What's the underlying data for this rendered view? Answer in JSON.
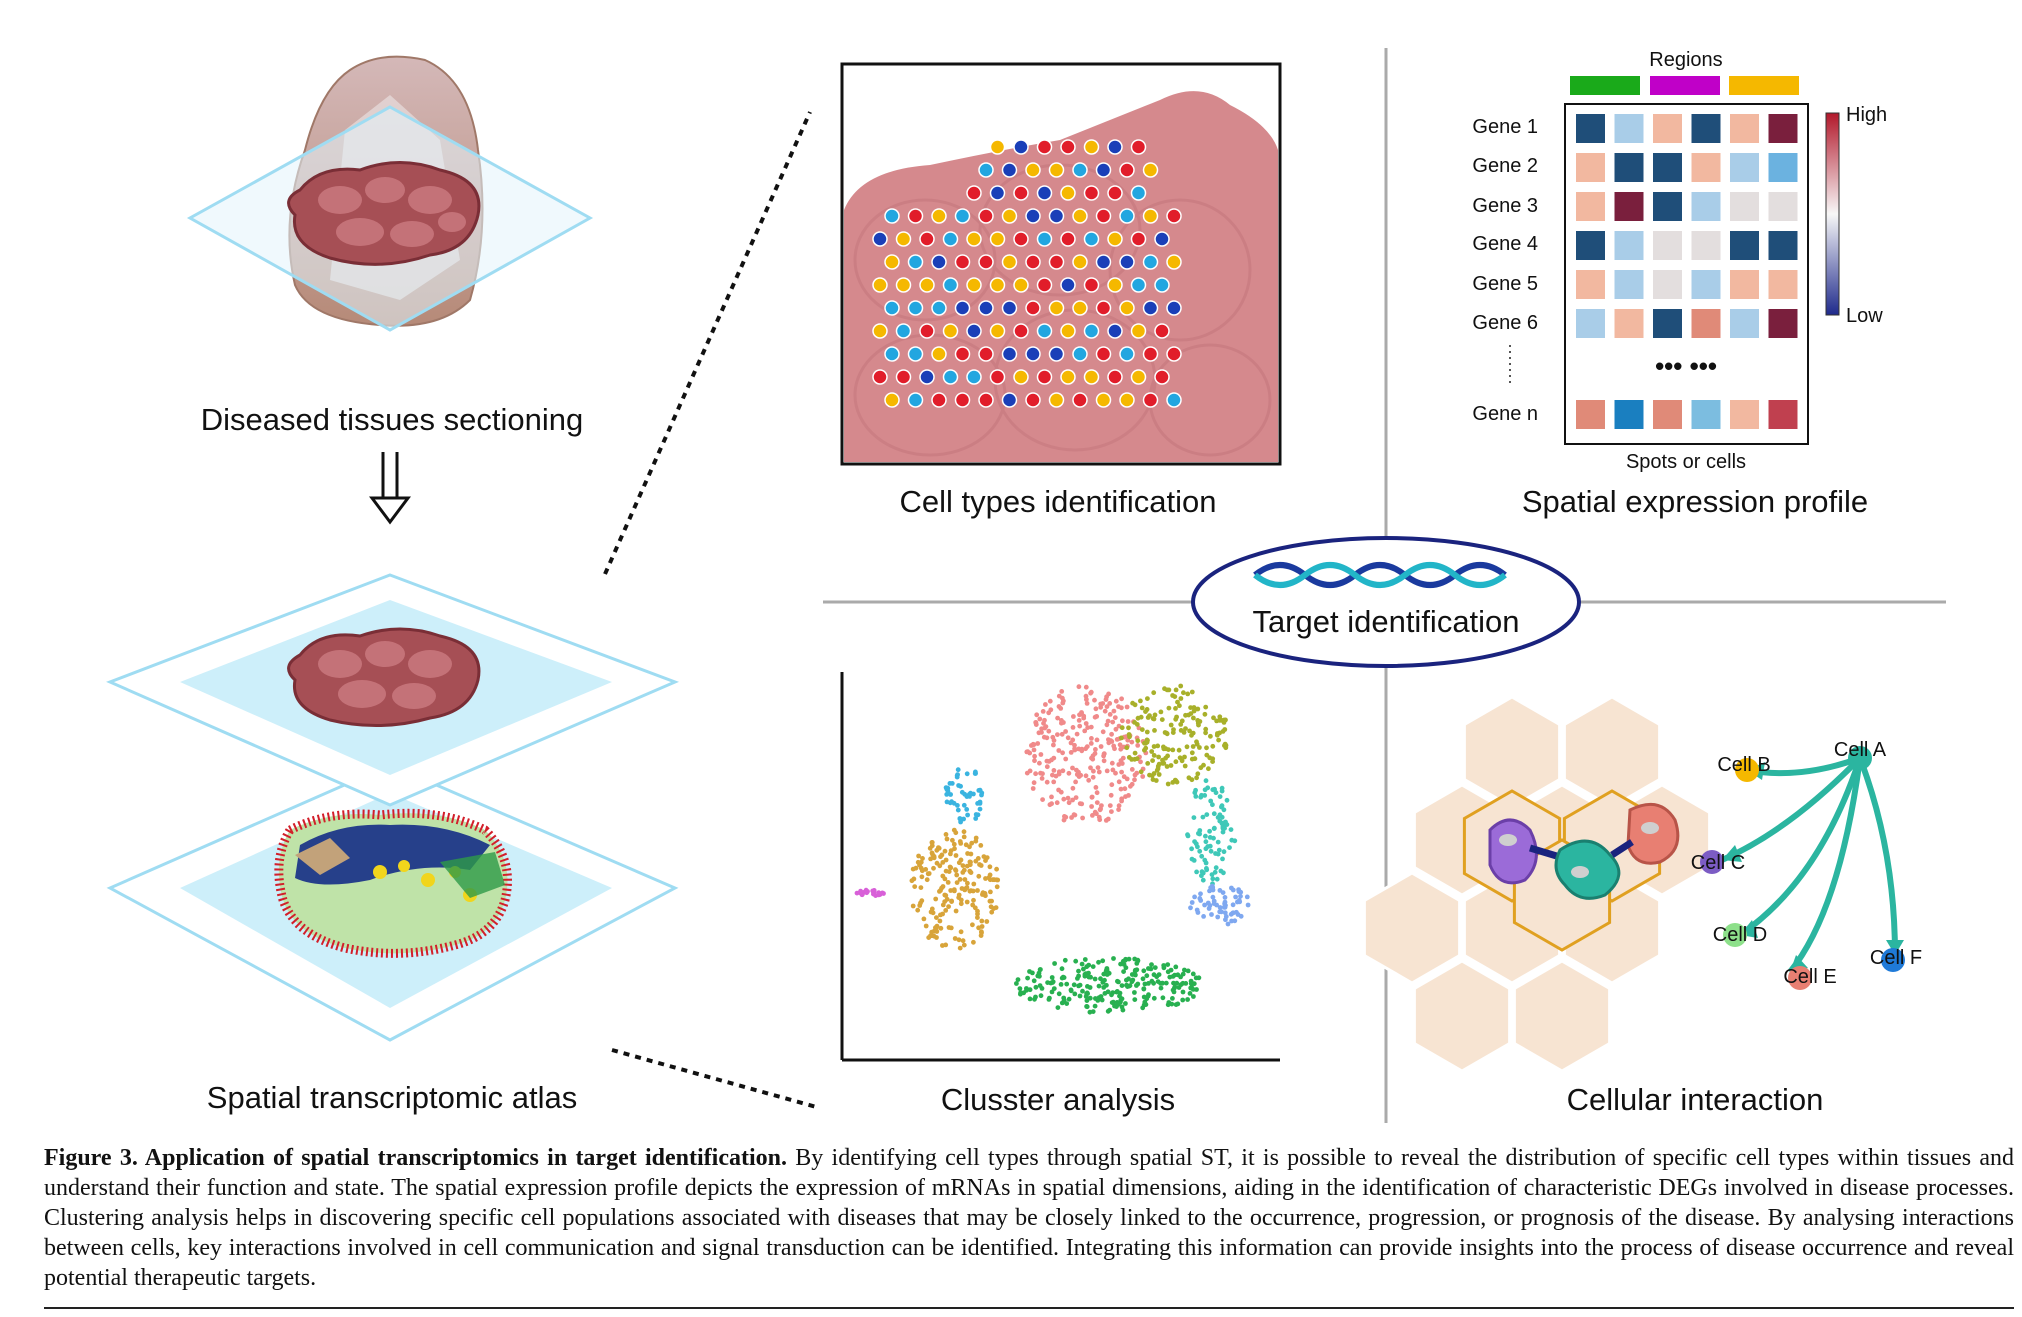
{
  "figure": {
    "left": {
      "sectioning_label": "Diseased tissues sectioning",
      "atlas_label": "Spatial transcriptomic atlas"
    },
    "panels": {
      "cell_types": {
        "label": "Cell types identification"
      },
      "expression": {
        "label": "Spatial expression profile",
        "regions_label": "Regions",
        "region_colors": [
          "#1aaa1a",
          "#c000c8",
          "#f5b800"
        ],
        "genes": [
          "Gene 1",
          "Gene 2",
          "Gene 3",
          "Gene 4",
          "Gene 5",
          "Gene 6",
          "Gene n"
        ],
        "ellipsis": "••• •••",
        "colorbar_high": "High",
        "colorbar_low": "Low",
        "x_label": "Spots or cells"
      },
      "cluster": {
        "label": "Clusster analysis"
      },
      "interaction": {
        "label": "Cellular interaction",
        "cells": [
          "Cell A",
          "Cell B",
          "Cell C",
          "Cell D",
          "Cell E",
          "Cell F"
        ]
      }
    },
    "center": {
      "label": "Target identification"
    }
  },
  "caption": {
    "title": "Figure 3. Application of spatial transcriptomics in target identification.",
    "body": " By identifying cell types through spatial ST, it is possible to reveal the distribution of specific cell types within tissues and understand their function and state. The spatial expression profile depicts the expression of mRNAs in spatial dimensions, aiding in the identification of characteristic DEGs involved in disease processes. Clustering analysis helps in discovering specific cell populations associated with diseases that may be closely linked to the occurrence, progression, or prognosis of the disease. By analysing interactions between cells, key interactions involved in cell communication and signal transduction can be identified. Integrating this information can provide insights into the process of disease occurrence and reveal potential therapeutic targets."
  }
}
